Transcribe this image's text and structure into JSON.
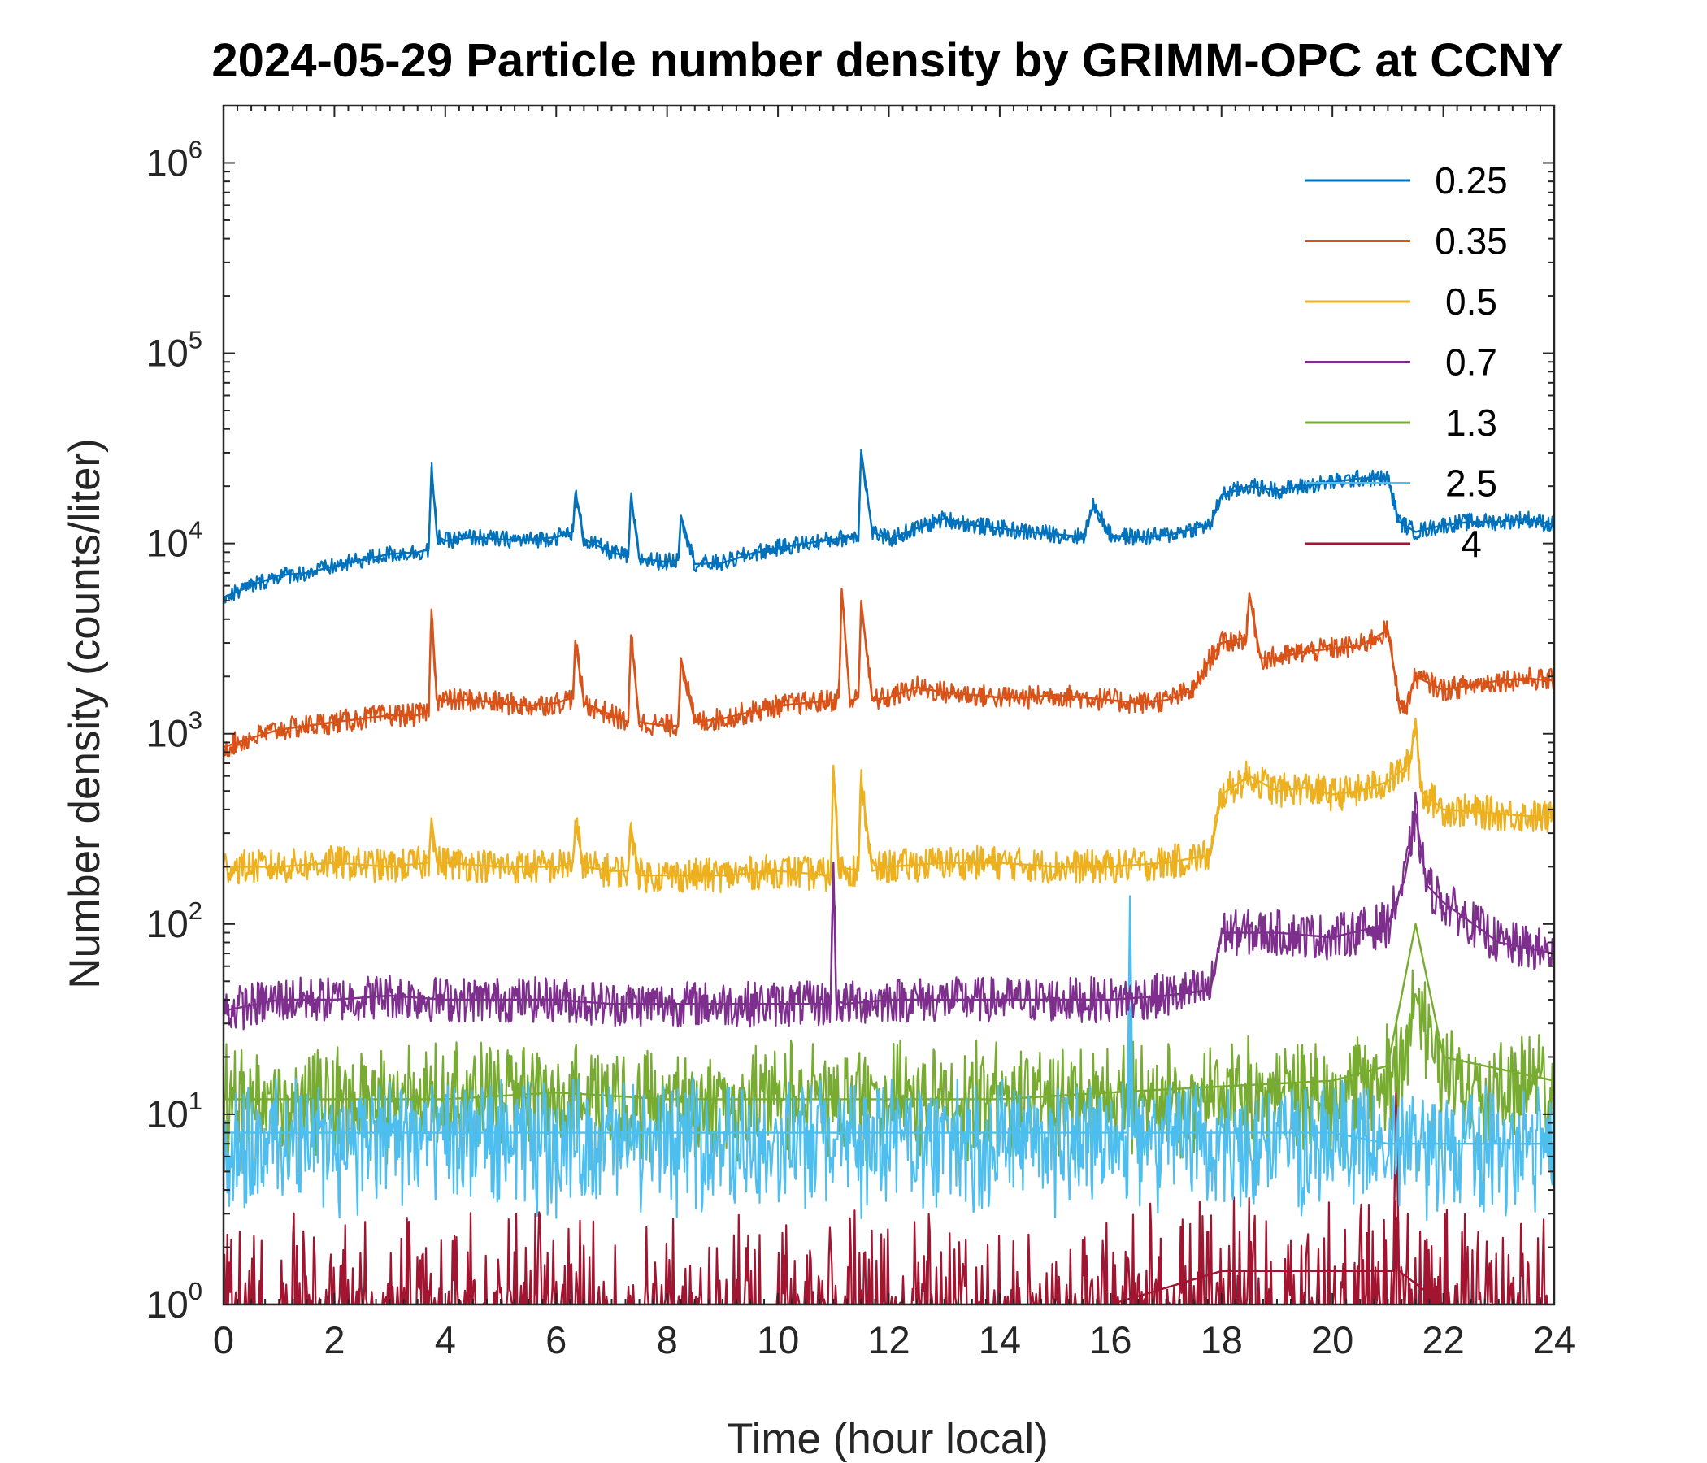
{
  "chart_data": {
    "type": "line",
    "title": "2024-05-29 Particle number density by GRIMM-OPC at CCNY",
    "xlabel": "Time (hour local)",
    "ylabel": "Number density (counts/liter)",
    "xlim": [
      0,
      24
    ],
    "ylim": [
      1,
      2000000
    ],
    "yscale": "log",
    "xticks": [
      0,
      2,
      4,
      6,
      8,
      10,
      12,
      14,
      16,
      18,
      20,
      22,
      24
    ],
    "xtick_labels": [
      "0",
      "2",
      "4",
      "6",
      "8",
      "10",
      "12",
      "14",
      "16",
      "18",
      "20",
      "22",
      "24"
    ],
    "yticks": [
      1,
      10,
      100,
      1000,
      10000,
      100000,
      1000000
    ],
    "ytick_labels": [
      {
        "base": "10",
        "exp": "0"
      },
      {
        "base": "10",
        "exp": "1"
      },
      {
        "base": "10",
        "exp": "2"
      },
      {
        "base": "10",
        "exp": "3"
      },
      {
        "base": "10",
        "exp": "4"
      },
      {
        "base": "10",
        "exp": "5"
      },
      {
        "base": "10",
        "exp": "6"
      }
    ],
    "grid": false,
    "box": true,
    "legend_position": "top-right",
    "series": [
      {
        "name": "0.25",
        "color": "#0072BD",
        "x": [
          0,
          0.5,
          1,
          1.5,
          2,
          2.5,
          3,
          3.5,
          3.7,
          3.75,
          3.85,
          4,
          4.5,
          5,
          5.5,
          6,
          6.3,
          6.35,
          6.5,
          7,
          7.3,
          7.35,
          7.5,
          8,
          8.2,
          8.25,
          8.5,
          9,
          9.5,
          10,
          10.5,
          11,
          11.45,
          11.5,
          11.7,
          12,
          12.5,
          13,
          13.5,
          14,
          14.5,
          15,
          15.5,
          15.7,
          16,
          16.5,
          17,
          17.5,
          17.8,
          18,
          18.5,
          19,
          19.5,
          20,
          20.5,
          21,
          21.2,
          21.5,
          22,
          22.5,
          23,
          23.5,
          24
        ],
        "y": [
          5200,
          6000,
          6800,
          7000,
          7600,
          8200,
          8800,
          9000,
          9300,
          25000,
          11000,
          10300,
          10800,
          10500,
          10400,
          10800,
          11500,
          18500,
          10500,
          9000,
          8500,
          17500,
          8300,
          8000,
          8200,
          14000,
          7800,
          7900,
          8800,
          9500,
          10000,
          10500,
          11000,
          31000,
          11500,
          10500,
          12000,
          13500,
          12500,
          12000,
          11500,
          11200,
          10800,
          16000,
          11000,
          10800,
          11000,
          12000,
          12500,
          18000,
          20000,
          19000,
          20000,
          21000,
          22000,
          22000,
          13000,
          11500,
          12500,
          13000,
          13000,
          13500,
          12500
        ]
      },
      {
        "name": "0.35",
        "color": "#D95319",
        "x": [
          0,
          0.5,
          1,
          1.5,
          2,
          2.5,
          3,
          3.5,
          3.7,
          3.75,
          3.85,
          4,
          4.5,
          5,
          5.5,
          6,
          6.3,
          6.35,
          6.5,
          7,
          7.3,
          7.35,
          7.5,
          8,
          8.2,
          8.25,
          8.5,
          9,
          9.5,
          10,
          10.5,
          11,
          11.1,
          11.15,
          11.3,
          11.45,
          11.5,
          11.7,
          12,
          12.5,
          13,
          13.5,
          14,
          14.5,
          15,
          15.5,
          16,
          16.5,
          17,
          17.5,
          17.8,
          18,
          18.45,
          18.5,
          18.7,
          19,
          19.5,
          20,
          20.5,
          21,
          21.2,
          21.3,
          21.5,
          22,
          22.5,
          23,
          23.5,
          24
        ],
        "y": [
          850,
          950,
          1050,
          1100,
          1150,
          1200,
          1250,
          1250,
          1300,
          4500,
          1500,
          1500,
          1500,
          1450,
          1400,
          1450,
          1550,
          3000,
          1450,
          1250,
          1150,
          3300,
          1150,
          1100,
          1100,
          2500,
          1150,
          1200,
          1300,
          1400,
          1450,
          1500,
          1550,
          5800,
          1450,
          1550,
          5000,
          1500,
          1550,
          1750,
          1650,
          1600,
          1550,
          1550,
          1600,
          1550,
          1500,
          1450,
          1500,
          1700,
          2500,
          3000,
          3200,
          5500,
          2500,
          2500,
          2700,
          2800,
          2900,
          3500,
          1500,
          1300,
          2000,
          1700,
          1800,
          1900,
          1950,
          1900
        ]
      },
      {
        "name": "0.5",
        "color": "#EDB120",
        "x": [
          0,
          1,
          2,
          3,
          3.7,
          3.75,
          3.85,
          4,
          5,
          6,
          6.3,
          6.35,
          6.5,
          7,
          7.3,
          7.35,
          7.5,
          8,
          9,
          10,
          10.95,
          11,
          11.1,
          11.45,
          11.5,
          11.7,
          12,
          13,
          14,
          15,
          16,
          17,
          17.8,
          18,
          18.5,
          19,
          19.5,
          20,
          20.5,
          21,
          21.4,
          21.5,
          21.6,
          22,
          23,
          24
        ],
        "y": [
          200,
          200,
          210,
          200,
          210,
          360,
          210,
          210,
          200,
          200,
          210,
          330,
          200,
          190,
          190,
          320,
          180,
          180,
          180,
          190,
          180,
          680,
          200,
          190,
          580,
          190,
          200,
          210,
          210,
          200,
          200,
          210,
          230,
          480,
          600,
          500,
          520,
          480,
          500,
          560,
          700,
          1200,
          500,
          400,
          380,
          360
        ]
      },
      {
        "name": "0.7",
        "color": "#7E2F8E",
        "x": [
          0,
          1,
          2,
          3,
          4,
          5,
          6,
          7,
          8,
          9,
          10,
          10.95,
          11,
          11.05,
          11.2,
          12,
          13,
          14,
          15,
          16,
          17,
          17.8,
          18,
          19,
          20,
          21,
          21.3,
          21.5,
          21.7,
          22,
          23,
          24
        ],
        "y": [
          35,
          40,
          40,
          42,
          40,
          40,
          40,
          38,
          38,
          38,
          38,
          38,
          210,
          40,
          38,
          40,
          40,
          40,
          40,
          40,
          42,
          45,
          90,
          90,
          85,
          100,
          170,
          380,
          160,
          130,
          80,
          70
        ]
      },
      {
        "name": "1.3",
        "color": "#77AC30",
        "x": [
          0,
          2,
          4,
          6,
          8,
          10,
          12,
          14,
          16,
          18,
          20,
          21,
          21.5,
          22,
          24
        ],
        "y": [
          12,
          12,
          12,
          13,
          12,
          12,
          12,
          12,
          13,
          14,
          15,
          18,
          100,
          20,
          15
        ]
      },
      {
        "name": "2.5",
        "color": "#4DBEEE",
        "x": [
          0,
          2,
          4,
          6,
          8,
          10,
          12,
          14,
          16,
          16.3,
          16.35,
          16.4,
          18,
          20,
          21,
          22,
          24
        ],
        "y": [
          8,
          8,
          8,
          8,
          8,
          8,
          8,
          8,
          8,
          8,
          140,
          8,
          8,
          8,
          7,
          7,
          7
        ]
      },
      {
        "name": "4",
        "color": "#A2142F",
        "x": [
          0,
          2,
          4,
          6,
          8,
          10,
          12,
          14,
          16,
          18,
          20,
          21.1,
          21.15,
          21.2,
          22,
          24
        ],
        "y": [
          1,
          1,
          1,
          1,
          1,
          1,
          1,
          1,
          1,
          1.5,
          1.5,
          1.5,
          14,
          1.5,
          1,
          1
        ]
      }
    ]
  }
}
